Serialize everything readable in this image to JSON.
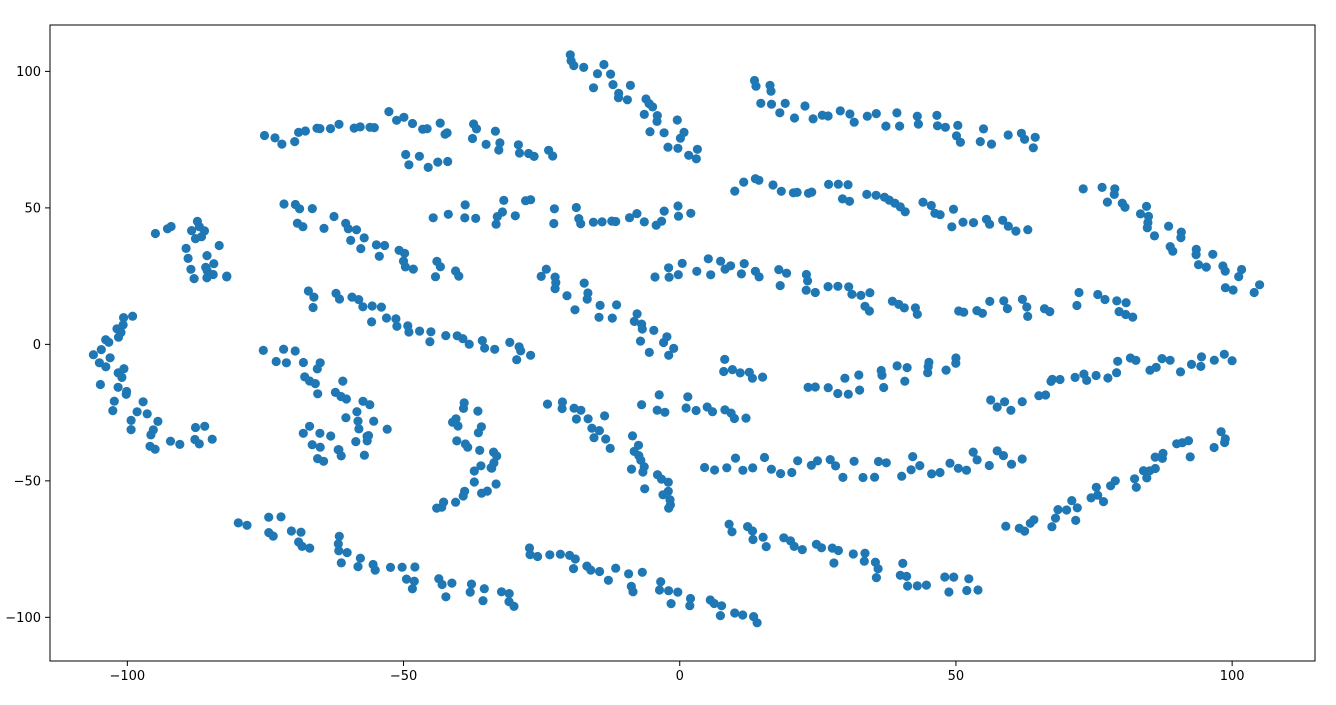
{
  "chart_data": {
    "type": "scatter",
    "title": "",
    "xlabel": "",
    "ylabel": "",
    "xlim": [
      -114,
      115
    ],
    "ylim": [
      -116,
      117
    ],
    "xticks": [
      -100,
      -50,
      0,
      50,
      100
    ],
    "xtick_labels": [
      "−100",
      "−50",
      "0",
      "50",
      "100"
    ],
    "yticks": [
      100,
      50,
      0,
      -50,
      -100
    ],
    "ytick_labels": [
      "100",
      "50",
      "0",
      "−50",
      "−100"
    ],
    "grid": false,
    "legend": "none",
    "marker_color": "#1f77b4",
    "clusters": [
      {
        "kind": "arc",
        "pts": [
          [
            -94,
            40
          ],
          [
            -89,
            44
          ],
          [
            -86,
            38
          ],
          [
            -88,
            28
          ],
          [
            -84,
            24
          ],
          [
            -82,
            25
          ]
        ]
      },
      {
        "kind": "arc",
        "pts": [
          [
            -101,
            11
          ],
          [
            -104,
            -3
          ],
          [
            -100,
            -22
          ],
          [
            -96,
            -35
          ],
          [
            -89,
            -36
          ],
          [
            -86,
            -30
          ]
        ]
      },
      {
        "kind": "band",
        "pts": [
          [
            -75,
            74
          ],
          [
            -55,
            82
          ],
          [
            -40,
            80
          ],
          [
            -30,
            72
          ],
          [
            -23,
            69
          ]
        ]
      },
      {
        "kind": "band",
        "pts": [
          [
            -50,
            68
          ],
          [
            -42,
            67
          ]
        ]
      },
      {
        "kind": "band",
        "pts": [
          [
            -21,
            105
          ],
          [
            -12,
            95
          ],
          [
            -4,
            82
          ],
          [
            3,
            68
          ]
        ]
      },
      {
        "kind": "band",
        "pts": [
          [
            12,
            95
          ],
          [
            24,
            84
          ],
          [
            42,
            82
          ],
          [
            60,
            74
          ],
          [
            64,
            72
          ]
        ]
      },
      {
        "kind": "band",
        "pts": [
          [
            -72,
            51
          ],
          [
            -60,
            40
          ],
          [
            -50,
            33
          ],
          [
            -40,
            25
          ]
        ]
      },
      {
        "kind": "band",
        "pts": [
          [
            -43,
            50
          ],
          [
            -35,
            47
          ],
          [
            -27,
            53
          ]
        ]
      },
      {
        "kind": "band",
        "pts": [
          [
            -23,
            48
          ],
          [
            -14,
            45
          ],
          [
            -5,
            46
          ],
          [
            2,
            48
          ]
        ]
      },
      {
        "kind": "band",
        "pts": [
          [
            10,
            57
          ],
          [
            25,
            58
          ],
          [
            40,
            50
          ],
          [
            55,
            45
          ],
          [
            63,
            42
          ]
        ]
      },
      {
        "kind": "band",
        "pts": [
          [
            76,
            59
          ],
          [
            85,
            45
          ],
          [
            95,
            30
          ],
          [
            104,
            19
          ]
        ]
      },
      {
        "kind": "band",
        "pts": [
          [
            -25,
            27
          ],
          [
            -16,
            15
          ],
          [
            -6,
            2
          ],
          [
            -2,
            -4
          ]
        ]
      },
      {
        "kind": "band",
        "pts": [
          [
            -4,
            24
          ],
          [
            10,
            30
          ],
          [
            25,
            20
          ],
          [
            35,
            16
          ],
          [
            43,
            11
          ]
        ]
      },
      {
        "kind": "band",
        "pts": [
          [
            -68,
            17
          ],
          [
            -55,
            12
          ],
          [
            -45,
            5
          ],
          [
            -30,
            -2
          ],
          [
            -27,
            -4
          ]
        ]
      },
      {
        "kind": "band",
        "pts": [
          [
            50,
            15
          ],
          [
            60,
            15
          ],
          [
            67,
            12
          ]
        ]
      },
      {
        "kind": "band",
        "pts": [
          [
            72,
            18
          ],
          [
            78,
            15
          ],
          [
            82,
            10
          ]
        ]
      },
      {
        "kind": "band",
        "pts": [
          [
            -72,
            0
          ],
          [
            -60,
            -20
          ],
          [
            -55,
            -35
          ],
          [
            -62,
            -42
          ],
          [
            -67,
            -30
          ]
        ]
      },
      {
        "kind": "band",
        "pts": [
          [
            -40,
            -22
          ],
          [
            -35,
            -40
          ],
          [
            -32,
            -46
          ],
          [
            -41,
            -55
          ],
          [
            -44,
            -60
          ]
        ]
      },
      {
        "kind": "band",
        "pts": [
          [
            -24,
            -22
          ],
          [
            -15,
            -30
          ],
          [
            -5,
            -45
          ],
          [
            -2,
            -60
          ]
        ]
      },
      {
        "kind": "band",
        "pts": [
          [
            -6,
            -20
          ],
          [
            12,
            -27
          ]
        ]
      },
      {
        "kind": "band",
        "pts": [
          [
            7,
            -8
          ],
          [
            15,
            -12
          ]
        ]
      },
      {
        "kind": "band",
        "pts": [
          [
            24,
            -18
          ],
          [
            38,
            -12
          ],
          [
            50,
            -5
          ]
        ]
      },
      {
        "kind": "band",
        "pts": [
          [
            56,
            -20
          ],
          [
            62,
            -21
          ]
        ]
      },
      {
        "kind": "band",
        "pts": [
          [
            64,
            -16
          ],
          [
            80,
            -9
          ],
          [
            100,
            -6
          ]
        ]
      },
      {
        "kind": "band",
        "pts": [
          [
            5,
            -45
          ],
          [
            20,
            -45
          ],
          [
            35,
            -46
          ],
          [
            50,
            -43
          ],
          [
            62,
            -42
          ]
        ]
      },
      {
        "kind": "band",
        "pts": [
          [
            59,
            -67
          ],
          [
            68,
            -64
          ],
          [
            80,
            -52
          ],
          [
            95,
            -35
          ],
          [
            98,
            -32
          ]
        ]
      },
      {
        "kind": "band",
        "pts": [
          [
            -78,
            -63
          ],
          [
            -60,
            -76
          ],
          [
            -45,
            -88
          ],
          [
            -30,
            -96
          ]
        ]
      },
      {
        "kind": "band",
        "pts": [
          [
            -27,
            -74
          ],
          [
            -10,
            -85
          ],
          [
            5,
            -97
          ],
          [
            14,
            -102
          ]
        ]
      },
      {
        "kind": "band",
        "pts": [
          [
            8,
            -68
          ],
          [
            25,
            -76
          ],
          [
            40,
            -84
          ],
          [
            54,
            -90
          ]
        ]
      }
    ]
  }
}
